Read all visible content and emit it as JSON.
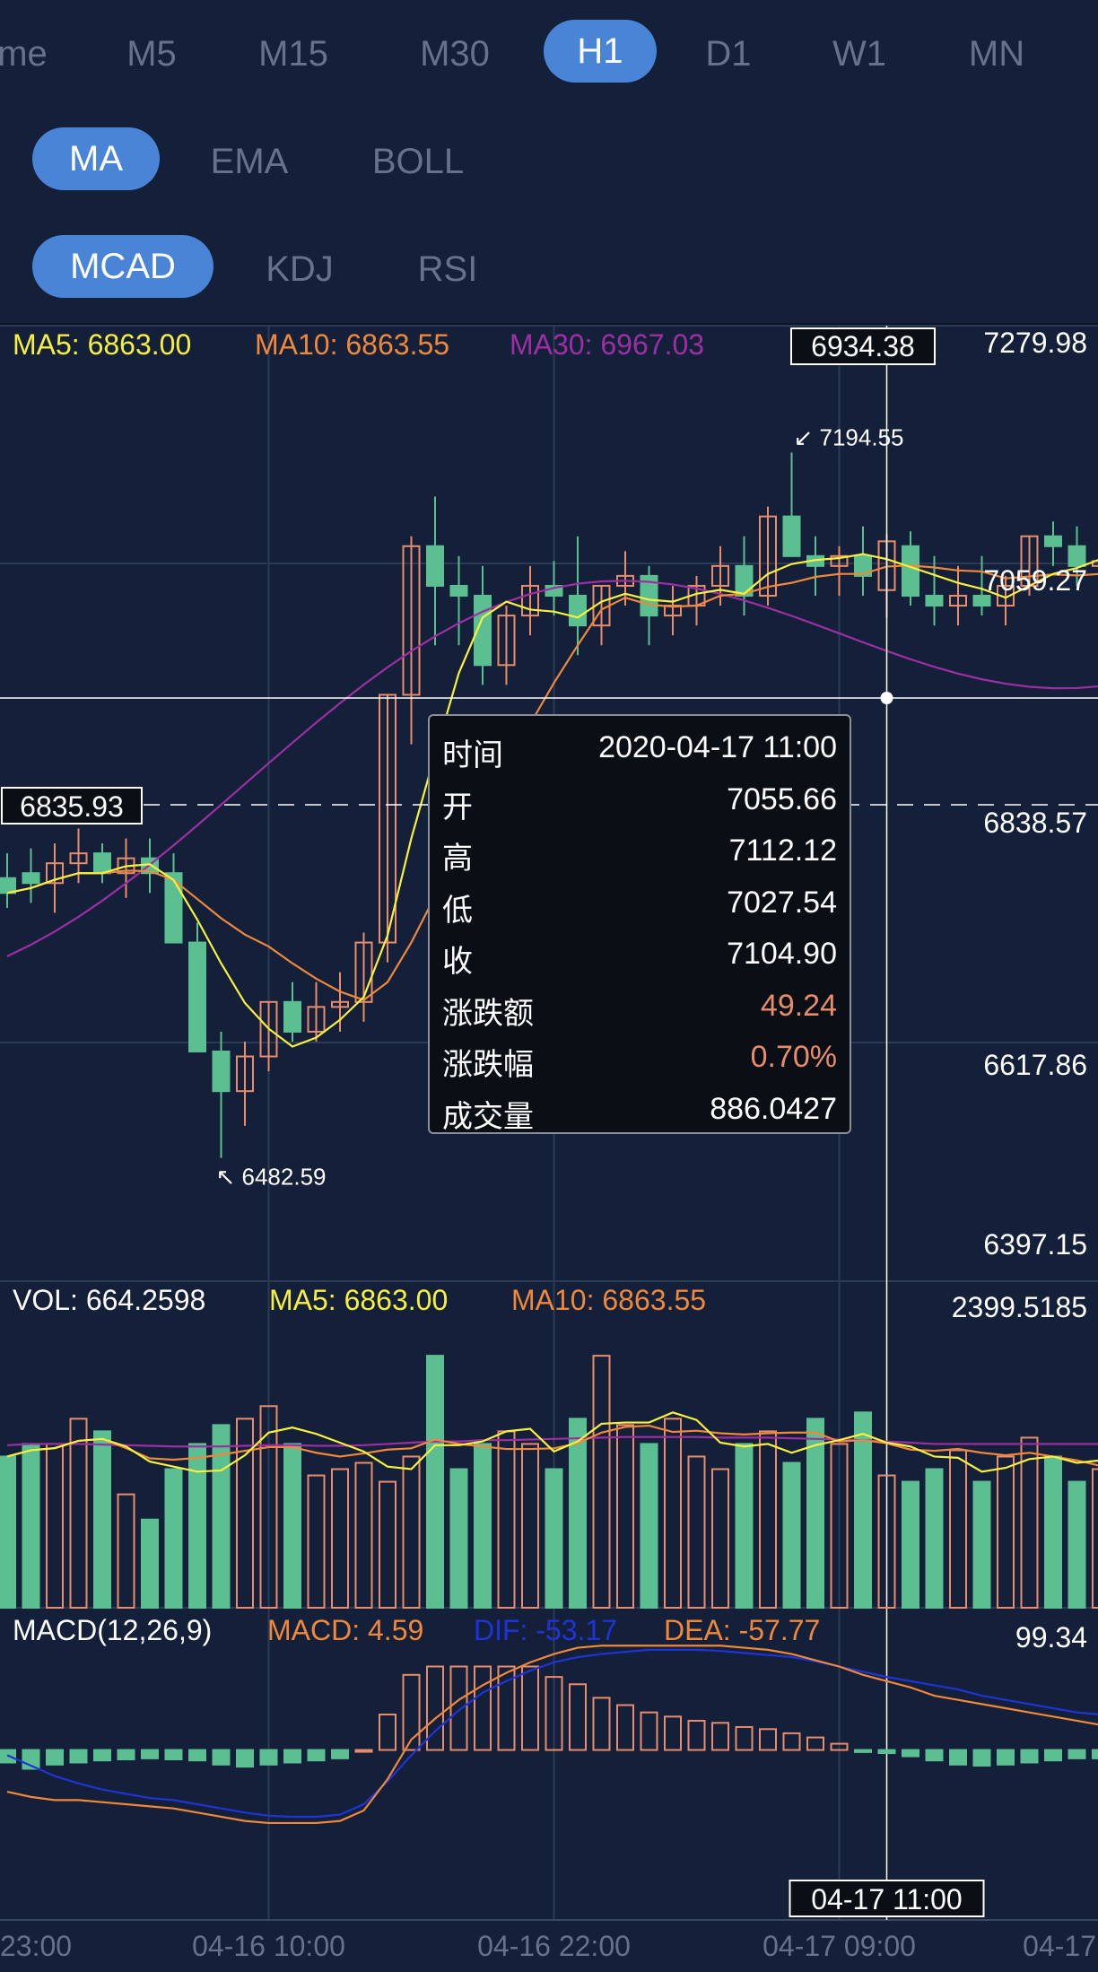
{
  "periods": [
    {
      "label": "me",
      "active": false
    },
    {
      "label": "M5",
      "active": false
    },
    {
      "label": "M15",
      "active": false
    },
    {
      "label": "M30",
      "active": false
    },
    {
      "label": "H1",
      "active": true
    },
    {
      "label": "D1",
      "active": false
    },
    {
      "label": "W1",
      "active": false
    },
    {
      "label": "MN",
      "active": false
    }
  ],
  "main_indicators": [
    {
      "label": "MA",
      "active": true
    },
    {
      "label": "EMA",
      "active": false
    },
    {
      "label": "BOLL",
      "active": false
    }
  ],
  "sub_indicators": [
    {
      "label": "MCAD",
      "active": true
    },
    {
      "label": "KDJ",
      "active": false
    },
    {
      "label": "RSI",
      "active": false
    }
  ],
  "colors": {
    "background": "#14203a",
    "up": "#e88c6b",
    "down": "#5bbf92",
    "ma5": "#f7f03c",
    "ma10": "#f0883a",
    "ma30": "#9d2fa3",
    "dif": "#1f34d6",
    "dea": "#f0883a",
    "grid": "#2c3a55",
    "tab_active": "#4a84d6"
  },
  "legend": {
    "ma5": "MA5: 6863.00",
    "ma10": "MA10: 6863.55",
    "ma30": "MA30: 6967.03",
    "vol": "VOL: 664.2598",
    "vol_ma5": "MA5: 6863.00",
    "vol_ma10": "MA10: 6863.55",
    "macd_title": "MACD(12,26,9)",
    "macd": "MACD: 4.59",
    "dif": "DIF: -53.17",
    "dea": "DEA: -57.77"
  },
  "crosshair": {
    "price": "6934.38",
    "time": "04-17 11:00",
    "last_price": "6835.93"
  },
  "tooltip": [
    {
      "label": "时间",
      "value": "2020-04-17 11:00",
      "color": "#ffffff"
    },
    {
      "label": "开",
      "value": "7055.66",
      "color": "#ffffff"
    },
    {
      "label": "高",
      "value": "7112.12",
      "color": "#ffffff"
    },
    {
      "label": "低",
      "value": "7027.54",
      "color": "#ffffff"
    },
    {
      "label": "收",
      "value": "7104.90",
      "color": "#ffffff"
    },
    {
      "label": "涨跌额",
      "value": "49.24",
      "color": "#e88c6b"
    },
    {
      "label": "涨跌幅",
      "value": "0.70%",
      "color": "#e88c6b"
    },
    {
      "label": "成交量",
      "value": "886.0427",
      "color": "#ffffff"
    }
  ],
  "chart_data": {
    "type": "candlestick",
    "price_axis_labels": [
      "7279.98",
      "7059.27",
      "6838.57",
      "6617.86",
      "6397.15"
    ],
    "ylim": [
      6397.15,
      7279.98
    ],
    "volume_axis_label": "2399.5185",
    "volume_max": 2399.5185,
    "macd_axis_label": "99.34",
    "macd_ylim": [
      -150,
      99.34
    ],
    "x_labels": [
      "23:00",
      "04-16 10:00",
      "04-16 22:00",
      "04-17 09:00",
      "04-17"
    ],
    "x_label_indices": [
      0,
      11,
      23,
      35,
      46
    ],
    "max_marker": "7194.55",
    "min_marker": "6482.59",
    "max_index": 33,
    "min_index": 9,
    "crosshair_index": 37,
    "candles": [
      [
        6765,
        6790,
        6735,
        6750
      ],
      [
        6770,
        6795,
        6740,
        6760
      ],
      [
        6760,
        6800,
        6730,
        6780
      ],
      [
        6780,
        6815,
        6760,
        6790
      ],
      [
        6790,
        6800,
        6760,
        6770
      ],
      [
        6770,
        6805,
        6745,
        6785
      ],
      [
        6785,
        6805,
        6750,
        6770
      ],
      [
        6770,
        6790,
        6700,
        6700
      ],
      [
        6700,
        6720,
        6590,
        6590
      ],
      [
        6590,
        6610,
        6482.59,
        6550
      ],
      [
        6550,
        6600,
        6515,
        6585
      ],
      [
        6585,
        6640,
        6570,
        6640
      ],
      [
        6640,
        6660,
        6600,
        6610
      ],
      [
        6610,
        6660,
        6600,
        6635
      ],
      [
        6635,
        6670,
        6610,
        6640
      ],
      [
        6640,
        6710,
        6620,
        6700
      ],
      [
        6700,
        6950,
        6680,
        6950
      ],
      [
        6950,
        7110,
        6900,
        7100
      ],
      [
        7100,
        7150,
        7000,
        7060
      ],
      [
        7060,
        7090,
        7000,
        7050
      ],
      [
        7050,
        7080,
        6960,
        6980
      ],
      [
        6980,
        7040,
        6960,
        7030
      ],
      [
        7030,
        7080,
        7010,
        7060
      ],
      [
        7060,
        7085,
        7030,
        7050
      ],
      [
        7050,
        7110,
        6990,
        7020
      ],
      [
        7020,
        7060,
        7000,
        7060
      ],
      [
        7060,
        7095,
        7040,
        7070
      ],
      [
        7070,
        7080,
        7000,
        7030
      ],
      [
        7030,
        7060,
        7010,
        7040
      ],
      [
        7040,
        7070,
        7020,
        7060
      ],
      [
        7060,
        7100,
        7040,
        7080
      ],
      [
        7080,
        7110,
        7030,
        7050
      ],
      [
        7050,
        7140,
        7040,
        7130
      ],
      [
        7130,
        7194.55,
        7090,
        7090
      ],
      [
        7090,
        7110,
        7050,
        7080
      ],
      [
        7080,
        7100,
        7050,
        7090
      ],
      [
        7090,
        7120,
        7050,
        7070
      ],
      [
        7055.66,
        7112.12,
        7027.54,
        7104.9
      ],
      [
        7100,
        7115,
        7040,
        7050
      ],
      [
        7050,
        7090,
        7020,
        7040
      ],
      [
        7040,
        7080,
        7020,
        7050
      ],
      [
        7050,
        7090,
        7030,
        7040
      ],
      [
        7040,
        7070,
        7020,
        7060
      ],
      [
        7060,
        7110,
        7050,
        7110
      ],
      [
        7110,
        7125,
        7080,
        7100
      ],
      [
        7100,
        7120,
        7060,
        7080
      ],
      [
        7080,
        7110,
        7070,
        7085
      ]
    ],
    "volumes": [
      1200,
      1300,
      1300,
      1500,
      1400,
      900,
      700,
      1100,
      1300,
      1450,
      1500,
      1600,
      1300,
      1050,
      1100,
      1150,
      1000,
      1200,
      2000,
      1100,
      1300,
      1400,
      1300,
      1100,
      1500,
      2000,
      1450,
      1300,
      1500,
      1200,
      1100,
      1300,
      1400,
      1150,
      1500,
      1300,
      1550,
      1050,
      1000,
      1100,
      1250,
      1000,
      1200,
      1350,
      1200,
      1000,
      1100
    ],
    "ma30_volume": [
      1290,
      1300,
      1300,
      1300,
      1295,
      1290,
      1285,
      1280,
      1280,
      1280,
      1285,
      1290,
      1290,
      1285,
      1285,
      1290,
      1300,
      1310,
      1320,
      1320,
      1330,
      1330,
      1335,
      1340,
      1345,
      1350,
      1355,
      1355,
      1355,
      1355,
      1350,
      1350,
      1350,
      1345,
      1340,
      1335,
      1330,
      1320,
      1310,
      1300,
      1300,
      1300,
      1300,
      1300,
      1300,
      1300,
      1300
    ],
    "macd_hist": [
      -12,
      -18,
      -14,
      -12,
      -10,
      -9,
      -8,
      -9,
      -10,
      -14,
      -16,
      -14,
      -12,
      -10,
      -8,
      0,
      34,
      72,
      80,
      80,
      80,
      80,
      80,
      70,
      63,
      50,
      43,
      36,
      32,
      28,
      26,
      22,
      20,
      16,
      12,
      6,
      -2,
      -3,
      -6,
      -10,
      -14,
      -15,
      -14,
      -12,
      -10,
      -8,
      -8
    ],
    "dif": [
      -5,
      -15,
      -25,
      -32,
      -38,
      -42,
      -46,
      -48,
      -52,
      -56,
      -60,
      -63,
      -64,
      -64,
      -62,
      -52,
      -30,
      -5,
      18,
      38,
      55,
      66,
      76,
      84,
      89,
      92,
      94,
      96,
      96,
      96,
      95,
      93,
      91,
      89,
      85,
      80,
      75,
      70,
      66,
      62,
      58,
      52,
      48,
      44,
      40,
      36,
      34
    ],
    "dea": [
      -40,
      -45,
      -48,
      -48,
      -50,
      -52,
      -54,
      -56,
      -60,
      -64,
      -68,
      -70,
      -70,
      -70,
      -68,
      -58,
      -28,
      10,
      30,
      48,
      62,
      74,
      84,
      92,
      98,
      100,
      100,
      100,
      100,
      100,
      100,
      98,
      96,
      92,
      86,
      80,
      72,
      66,
      60,
      52,
      48,
      44,
      40,
      36,
      32,
      28,
      24
    ]
  }
}
